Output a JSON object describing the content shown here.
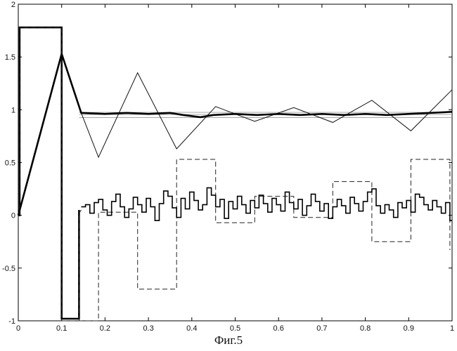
{
  "caption": "Фиг.5",
  "chart_data": {
    "type": "line",
    "title": "",
    "xlabel": "",
    "ylabel": "",
    "xlim": [
      0,
      1
    ],
    "ylim": [
      -1,
      2
    ],
    "grid": false,
    "legend": "none",
    "x_ticks": [
      0,
      0.1,
      0.2,
      0.3,
      0.4,
      0.5,
      0.6,
      0.7,
      0.8,
      0.9,
      1
    ],
    "x_tick_labels": [
      "0",
      "0.1",
      "0.2",
      "0.3",
      "0.4",
      "0.5",
      "0.6",
      "0.7",
      "0.8",
      "0.9",
      "1"
    ],
    "y_ticks": [
      -1,
      -0.5,
      0,
      0.5,
      1,
      1.5,
      2
    ],
    "y_tick_labels": [
      "-1",
      "-0.5",
      "0",
      "0.5",
      "1",
      "1.5",
      "2"
    ],
    "series": [
      {
        "style": "reference",
        "color": "#9a9a9a",
        "x": [
          0.14,
          1
        ],
        "y": [
          0.975,
          0.975
        ]
      },
      {
        "style": "reference",
        "color": "#9a9a9a",
        "x": [
          0.14,
          1
        ],
        "y": [
          0.955,
          0.955
        ]
      },
      {
        "style": "reference",
        "color": "#9a9a9a",
        "x": [
          0.14,
          1
        ],
        "y": [
          0.925,
          0.925
        ]
      },
      {
        "style": "thin",
        "color": "#111111",
        "x": [
          0.145,
          0.185,
          0.275,
          0.365,
          0.455,
          0.545,
          0.635,
          0.725,
          0.815,
          0.905,
          1.0
        ],
        "y": [
          0.97,
          0.55,
          1.35,
          0.63,
          1.03,
          0.89,
          1.02,
          0.88,
          1.09,
          0.8,
          1.19
        ]
      },
      {
        "style": "thick",
        "color": "#000000",
        "x": [
          0,
          0.1,
          0.145,
          0.2,
          0.25,
          0.3,
          0.35,
          0.38,
          0.42,
          0.45,
          0.5,
          0.55,
          0.6,
          0.65,
          0.7,
          0.75,
          0.8,
          0.85,
          0.9,
          0.95,
          1.0
        ],
        "y": [
          0,
          1.53,
          0.97,
          0.96,
          0.97,
          0.96,
          0.97,
          0.95,
          0.93,
          0.95,
          0.96,
          0.95,
          0.96,
          0.95,
          0.96,
          0.95,
          0.96,
          0.95,
          0.96,
          0.97,
          0.98
        ]
      },
      {
        "style": "thick-step",
        "color": "#000000",
        "x": [
          0,
          0.003,
          0.003,
          0.1,
          0.1,
          0.14,
          0.14
        ],
        "y": [
          0,
          0,
          1.78,
          1.78,
          -0.98,
          -0.98,
          0.05
        ]
      },
      {
        "style": "dashed",
        "color": "#222222",
        "x": [
          0,
          0.003,
          0.003,
          0.1,
          0.1,
          0.185,
          0.185,
          0.275,
          0.275,
          0.365,
          0.365,
          0.455,
          0.455,
          0.545,
          0.545,
          0.635,
          0.635,
          0.725,
          0.725,
          0.815,
          0.815,
          0.905,
          0.905,
          0.995,
          0.995
        ],
        "y": [
          0,
          0,
          1.78,
          1.78,
          -1.0,
          -1.0,
          0.03,
          0.03,
          -0.7,
          -0.7,
          0.53,
          0.53,
          -0.07,
          -0.07,
          0.18,
          0.18,
          -0.02,
          -0.02,
          0.32,
          0.32,
          -0.25,
          -0.25,
          0.53,
          0.53,
          -0.33
        ]
      },
      {
        "style": "dashed",
        "color": "#222222",
        "x": [
          0.14,
          0.14,
          0.145
        ],
        "y": [
          -1.0,
          0.02,
          0.05
        ]
      },
      {
        "style": "noisy-step",
        "color": "#000000",
        "x": [
          0.145,
          0.155,
          0.165,
          0.175,
          0.185,
          0.195,
          0.205,
          0.215,
          0.225,
          0.235,
          0.245,
          0.255,
          0.265,
          0.275,
          0.285,
          0.295,
          0.305,
          0.315,
          0.325,
          0.335,
          0.345,
          0.355,
          0.365,
          0.375,
          0.385,
          0.395,
          0.405,
          0.415,
          0.425,
          0.435,
          0.445,
          0.455,
          0.465,
          0.475,
          0.485,
          0.495,
          0.505,
          0.515,
          0.525,
          0.535,
          0.545,
          0.555,
          0.565,
          0.575,
          0.585,
          0.595,
          0.605,
          0.615,
          0.625,
          0.635,
          0.645,
          0.655,
          0.665,
          0.675,
          0.685,
          0.695,
          0.705,
          0.715,
          0.725,
          0.735,
          0.745,
          0.755,
          0.765,
          0.775,
          0.785,
          0.795,
          0.805,
          0.815,
          0.825,
          0.835,
          0.845,
          0.855,
          0.865,
          0.875,
          0.885,
          0.895,
          0.905,
          0.915,
          0.925,
          0.935,
          0.945,
          0.955,
          0.965,
          0.975,
          0.985,
          0.995
        ],
        "y": [
          0.08,
          0.1,
          0.02,
          0.12,
          0.15,
          0.05,
          0.0,
          0.13,
          0.2,
          0.08,
          -0.02,
          0.06,
          0.17,
          0.1,
          0.03,
          0.16,
          0.08,
          -0.05,
          0.11,
          0.23,
          0.18,
          0.07,
          -0.02,
          0.16,
          0.06,
          0.22,
          0.14,
          0.05,
          0.1,
          0.26,
          0.19,
          0.08,
          0.15,
          -0.03,
          0.13,
          0.06,
          0.18,
          0.1,
          0.02,
          0.14,
          0.07,
          0.19,
          0.11,
          0.03,
          0.16,
          0.1,
          0.04,
          0.22,
          0.12,
          0.06,
          0.15,
          0.0,
          0.09,
          0.2,
          0.13,
          0.04,
          0.11,
          -0.03,
          0.08,
          0.15,
          0.09,
          0.02,
          0.17,
          0.11,
          0.04,
          0.13,
          0.22,
          0.25,
          0.09,
          0.02,
          0.1,
          0.05,
          -0.02,
          0.12,
          0.07,
          0.14,
          0.03,
          0.2,
          0.17,
          0.1,
          0.05,
          0.14,
          0.08,
          0.02,
          0.12,
          -0.05
        ]
      }
    ]
  }
}
